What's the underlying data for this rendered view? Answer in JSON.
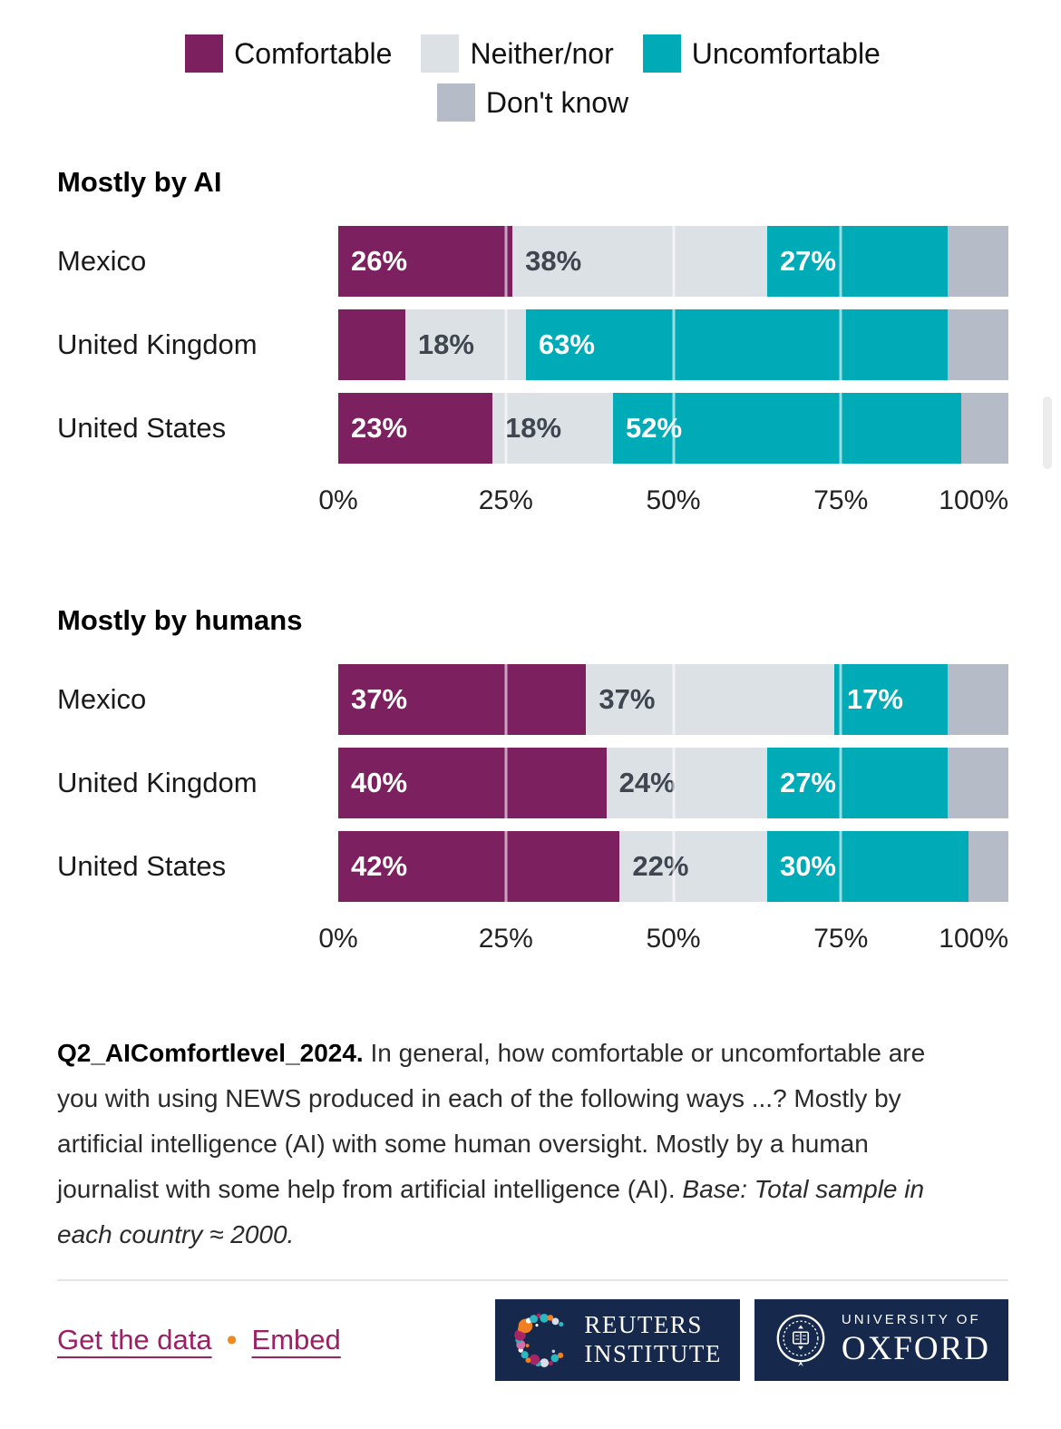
{
  "colors": {
    "comfortable": "#7d2060",
    "neither": "#dce1e6",
    "uncomfortable": "#00abb8",
    "dont_know": "#b5bcc8",
    "label_light": "#ffffff",
    "label_dark": "#3f4650",
    "link": "#9c2064",
    "bullet": "#f18a1e",
    "logo_navy": "#16294d"
  },
  "legend": {
    "items": [
      {
        "label": "Comfortable",
        "color": "#7d2060"
      },
      {
        "label": "Neither/nor",
        "color": "#dce1e6"
      },
      {
        "label": "Uncomfortable",
        "color": "#00abb8"
      },
      {
        "label": "Don't know",
        "color": "#b5bcc8"
      }
    ]
  },
  "chart_data": [
    {
      "type": "bar",
      "variant": "stacked-horizontal",
      "title": "Mostly by AI",
      "categories": [
        "Mexico",
        "United Kingdom",
        "United States"
      ],
      "series": [
        {
          "name": "Comfortable",
          "label_color": "#ffffff",
          "values": [
            26,
            10,
            23
          ],
          "labels": [
            "26%",
            "",
            "23%"
          ]
        },
        {
          "name": "Neither/nor",
          "label_color": "#3f4650",
          "values": [
            38,
            18,
            18
          ],
          "labels": [
            "38%",
            "18%",
            "18%"
          ]
        },
        {
          "name": "Uncomfortable",
          "label_color": "#ffffff",
          "values": [
            27,
            63,
            52
          ],
          "labels": [
            "27%",
            "63%",
            "52%"
          ]
        },
        {
          "name": "Don't know",
          "label_color": "#3f4650",
          "values": [
            9,
            9,
            7
          ],
          "labels": [
            "",
            "",
            ""
          ]
        }
      ],
      "x_ticks": [
        "0%",
        "25%",
        "50%",
        "75%",
        "100%"
      ],
      "xlim": [
        0,
        100
      ],
      "gridlines_pct": [
        25,
        50,
        75
      ],
      "legend_position": "top"
    },
    {
      "type": "bar",
      "variant": "stacked-horizontal",
      "title": "Mostly by humans",
      "categories": [
        "Mexico",
        "United Kingdom",
        "United States"
      ],
      "series": [
        {
          "name": "Comfortable",
          "label_color": "#ffffff",
          "values": [
            37,
            40,
            42
          ],
          "labels": [
            "37%",
            "40%",
            "42%"
          ]
        },
        {
          "name": "Neither/nor",
          "label_color": "#3f4650",
          "values": [
            37,
            24,
            22
          ],
          "labels": [
            "37%",
            "24%",
            "22%"
          ]
        },
        {
          "name": "Uncomfortable",
          "label_color": "#ffffff",
          "values": [
            17,
            27,
            30
          ],
          "labels": [
            "17%",
            "27%",
            "30%"
          ]
        },
        {
          "name": "Don't know",
          "label_color": "#3f4650",
          "values": [
            9,
            9,
            6
          ],
          "labels": [
            "",
            "",
            ""
          ]
        }
      ],
      "x_ticks": [
        "0%",
        "25%",
        "50%",
        "75%",
        "100%"
      ],
      "xlim": [
        0,
        100
      ],
      "gridlines_pct": [
        25,
        50,
        75
      ],
      "legend_position": "top"
    }
  ],
  "footnote": {
    "prefix": "Q2_AIComfortlevel_2024.",
    "body": " In general, how comfortable or uncomfortable are you with using NEWS produced in each of the following ways ...? Mostly by artificial intelligence (AI) with some human oversight. Mostly by a human journalist with some help from artificial intelligence (AI). ",
    "base_italic": "Base: Total sample in each country ≈ 2000."
  },
  "footer": {
    "links": [
      {
        "label": "Get the data"
      },
      {
        "label": "Embed"
      }
    ],
    "separator": "•",
    "logos": {
      "reuters": {
        "line1": "REUTERS",
        "line2": "INSTITUTE"
      },
      "oxford": {
        "line1": "UNIVERSITY OF",
        "line2": "OXFORD"
      }
    }
  }
}
